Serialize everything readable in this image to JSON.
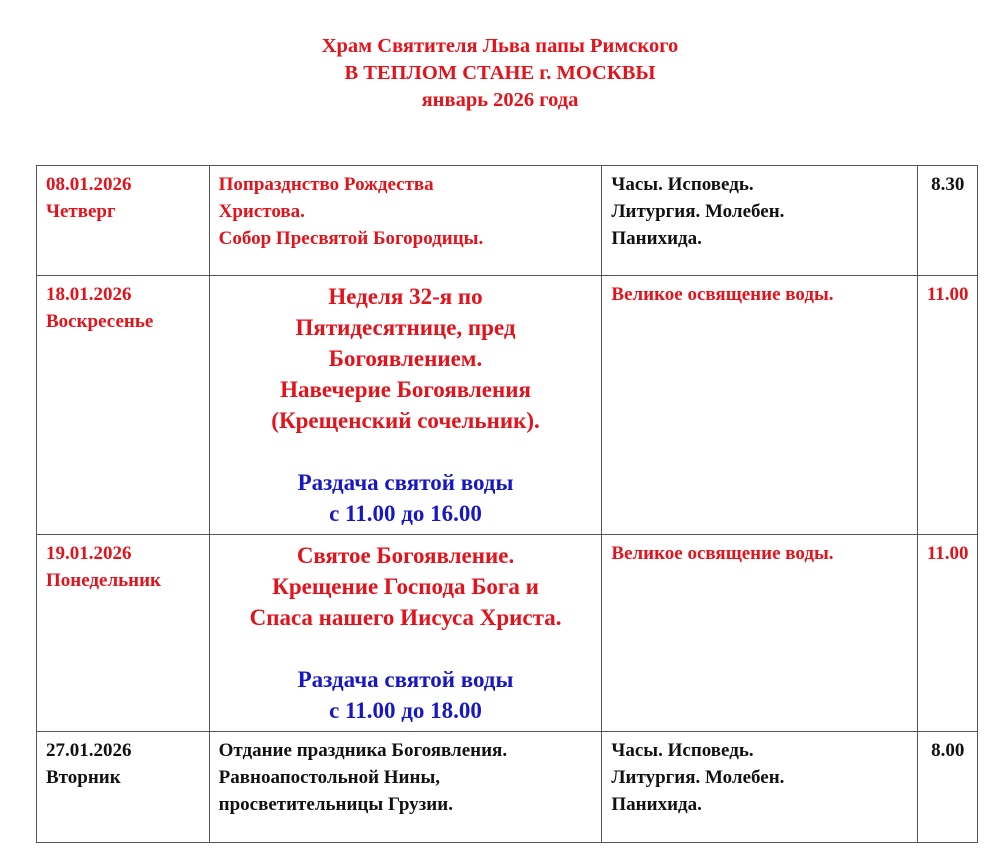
{
  "header": {
    "line1": "Храм Святителя Льва папы Римского",
    "line2": "В ТЕПЛОМ СТАНЕ г. МОСКВЫ",
    "line3": "январь 2026 года"
  },
  "colors": {
    "feast": "#e3121b",
    "water": "#1717c4",
    "regular": "#111111"
  },
  "rows": [
    {
      "date": "08.01.2026",
      "weekday": "Четверг",
      "event": [
        "Попразднство Рождества",
        "Христова.",
        "Собор Пресвятой Богородицы."
      ],
      "service": [
        "Часы. Исповедь.",
        "Литургия. Молебен.",
        "Панихида."
      ],
      "time": "8.30"
    },
    {
      "date": "18.01.2026",
      "weekday": "Воскресенье",
      "event": [
        "Неделя 32-я по",
        "Пятидесятнице, пред",
        "Богоявлением.",
        "Навечерие Богоявления",
        "(Крещенский сочельник)."
      ],
      "note": [
        "Раздача святой воды",
        "с 11.00 до 16.00"
      ],
      "service": [
        "Великое освящение воды."
      ],
      "time": "11.00"
    },
    {
      "date": "19.01.2026",
      "weekday": "Понедельник",
      "event": [
        "Святое Богоявление.",
        "Крещение Господа Бога и",
        "Спаса нашего Иисуса Христа."
      ],
      "note": [
        "Раздача святой воды",
        "с 11.00 до 18.00"
      ],
      "service": [
        "Великое освящение воды."
      ],
      "time": "11.00"
    },
    {
      "date": "27.01.2026",
      "weekday": "Вторник",
      "event": [
        "Отдание праздника Богоявления.",
        "Равноапостольной Нины,",
        "просветительницы Грузии."
      ],
      "service": [
        "Часы. Исповедь.",
        "Литургия. Молебен.",
        "Панихида."
      ],
      "time": "8.00"
    }
  ]
}
